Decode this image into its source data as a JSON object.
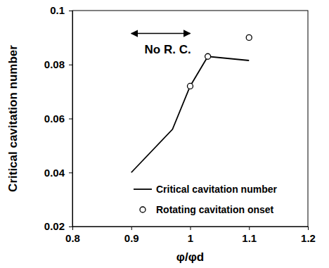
{
  "chart_data": {
    "type": "line",
    "x_label": "φ/φd",
    "y_label": "Critical cavitation number",
    "xlim": [
      0.8,
      1.2
    ],
    "xticks": [
      0.8,
      0.9,
      1,
      1.1,
      1.2
    ],
    "ylim": [
      0.02,
      0.1
    ],
    "yticks": [
      0.02,
      0.04,
      0.06,
      0.08,
      0.1
    ],
    "grid": false,
    "legend": "lower right",
    "series": [
      {
        "name": "Critical cavitation number",
        "type": "line",
        "color": "#000000",
        "marker": "none",
        "line_style": "solid",
        "x": [
          0.9,
          0.97,
          1.0,
          1.03,
          1.1
        ],
        "values": [
          0.04,
          0.056,
          0.072,
          0.083,
          0.0815
        ]
      },
      {
        "name": "Rotating cavitation onset",
        "type": "scatter",
        "color": "#000000",
        "marker": "circle",
        "x": [
          1.0,
          1.03,
          1.1
        ],
        "values": [
          0.072,
          0.083,
          0.09
        ]
      }
    ],
    "annotations": [
      {
        "text": "No R. C.",
        "x": [
          0.9,
          1.0
        ],
        "y": 0.0915
      }
    ]
  }
}
